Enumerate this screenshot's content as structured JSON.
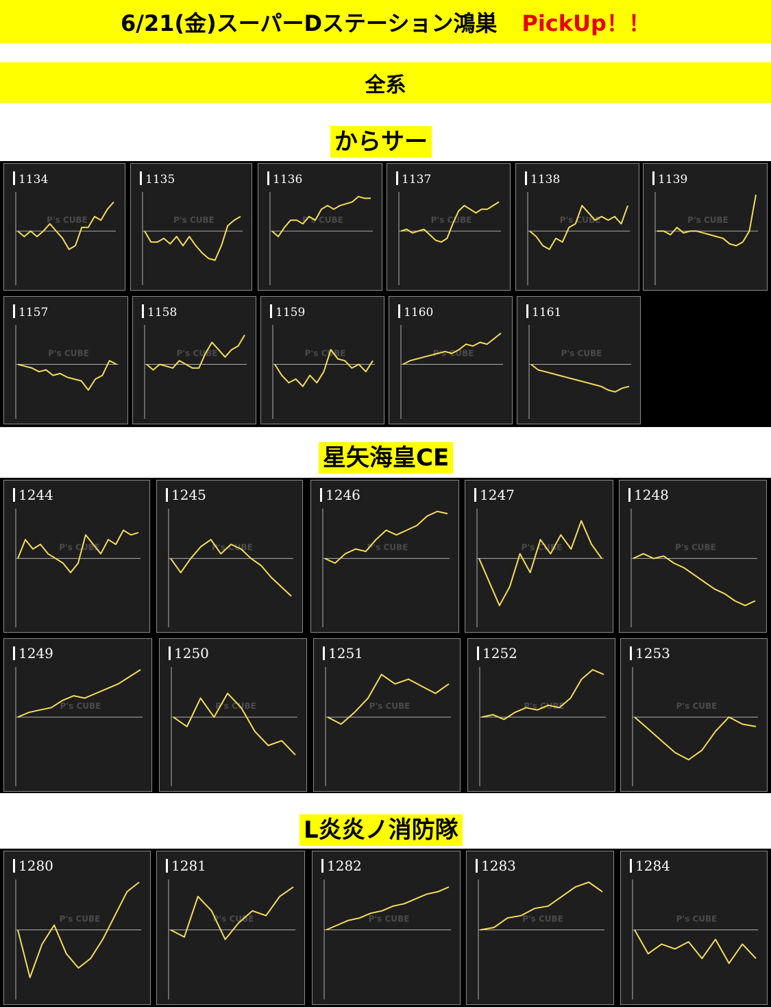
{
  "header": {
    "title": "6/21(金)スーパーDステーション鴻巣",
    "pickup": "PickUp！！",
    "subtitle": "全系"
  },
  "colors": {
    "banner": "#ffff00",
    "pickup": "#e60000",
    "panel_bg": "#1e1e1e",
    "line": "#f5dd5a",
    "baseline": "#b0b0b0"
  },
  "watermark": "P's CUBE",
  "sections": [
    {
      "name": "からサー"
    },
    {
      "name": "星矢海皇CE"
    },
    {
      "name": "L炎炎ノ消防隊"
    }
  ],
  "chart_data": [
    {
      "type": "line",
      "machine": "1134",
      "y": [
        0,
        -0.15,
        0,
        -0.15,
        0,
        0.2,
        0,
        -0.2,
        -0.5,
        -0.4,
        0.1,
        0.1,
        0.4,
        0.3,
        0.6,
        0.8
      ]
    },
    {
      "type": "line",
      "machine": "1135",
      "y": [
        0,
        -0.3,
        -0.3,
        -0.2,
        -0.35,
        -0.15,
        -0.4,
        -0.15,
        -0.4,
        -0.6,
        -0.75,
        -0.8,
        -0.4,
        0.15,
        0.3,
        0.4
      ]
    },
    {
      "type": "line",
      "machine": "1136",
      "y": [
        0,
        -0.15,
        0.1,
        0.3,
        0.3,
        0.2,
        0.4,
        0.3,
        0.6,
        0.7,
        0.6,
        0.7,
        0.75,
        0.8,
        0.95,
        0.9,
        0.9
      ]
    },
    {
      "type": "line",
      "machine": "1137",
      "y": [
        0,
        0.05,
        -0.05,
        0,
        0.05,
        -0.1,
        -0.25,
        -0.3,
        -0.2,
        0.2,
        0.55,
        0.7,
        0.6,
        0.5,
        0.6,
        0.6,
        0.7,
        0.8
      ]
    },
    {
      "type": "line",
      "machine": "1138",
      "y": [
        0,
        -0.15,
        -0.4,
        -0.5,
        -0.2,
        -0.3,
        0.1,
        0.2,
        0.7,
        0.5,
        0.3,
        0.4,
        0.3,
        0.4,
        0.2,
        0.7
      ]
    },
    {
      "type": "line",
      "machine": "1139",
      "y": [
        0,
        0,
        -0.1,
        0.1,
        -0.05,
        0,
        0,
        -0.05,
        -0.1,
        -0.15,
        -0.2,
        -0.35,
        -0.4,
        -0.3,
        0,
        1.0
      ]
    },
    {
      "type": "line",
      "machine": "1157",
      "y": [
        0,
        -0.05,
        -0.1,
        -0.2,
        -0.15,
        -0.3,
        -0.25,
        -0.35,
        -0.4,
        -0.45,
        -0.7,
        -0.4,
        -0.3,
        0.1,
        0
      ]
    },
    {
      "type": "line",
      "machine": "1158",
      "y": [
        0,
        -0.15,
        0,
        -0.05,
        -0.1,
        0.1,
        0,
        -0.1,
        -0.1,
        0.3,
        0.6,
        0.4,
        0.2,
        0.4,
        0.5,
        0.8
      ]
    },
    {
      "type": "line",
      "machine": "1159",
      "y": [
        0,
        -0.3,
        -0.5,
        -0.4,
        -0.6,
        -0.3,
        -0.5,
        -0.2,
        0.4,
        0.15,
        0.1,
        -0.1,
        0,
        -0.2,
        0.1
      ]
    },
    {
      "type": "line",
      "machine": "1160",
      "y": [
        0,
        0.1,
        0.15,
        0.2,
        0.25,
        0.3,
        0.35,
        0.3,
        0.4,
        0.55,
        0.5,
        0.6,
        0.55,
        0.7,
        0.85
      ]
    },
    {
      "type": "line",
      "machine": "1161",
      "y": [
        0,
        -0.15,
        -0.2,
        -0.25,
        -0.3,
        -0.35,
        -0.4,
        -0.45,
        -0.5,
        -0.55,
        -0.6,
        -0.7,
        -0.75,
        -0.65,
        -0.6
      ]
    },
    {
      "type": "line",
      "machine": "1244",
      "y": [
        0,
        0.4,
        0.2,
        0.3,
        0.1,
        0,
        -0.1,
        -0.3,
        -0.1,
        0.5,
        0.3,
        0.1,
        0.4,
        0.3,
        0.6,
        0.5,
        0.55
      ]
    },
    {
      "type": "line",
      "machine": "1245",
      "y": [
        0,
        -0.3,
        0,
        0.25,
        0.4,
        0.1,
        0.3,
        0.2,
        0,
        -0.15,
        -0.4,
        -0.6,
        -0.8
      ]
    },
    {
      "type": "line",
      "machine": "1246",
      "y": [
        0,
        -0.1,
        0.1,
        0.2,
        0.15,
        0.4,
        0.6,
        0.5,
        0.6,
        0.7,
        0.9,
        1.0,
        0.95
      ]
    },
    {
      "type": "line",
      "machine": "1247",
      "y": [
        0,
        -0.5,
        -1.0,
        -0.6,
        0.1,
        -0.3,
        0.4,
        0.1,
        0.5,
        0.2,
        0.8,
        0.3,
        0
      ]
    },
    {
      "type": "line",
      "machine": "1248",
      "y": [
        0,
        0.1,
        0,
        0.05,
        -0.1,
        -0.2,
        -0.35,
        -0.5,
        -0.65,
        -0.75,
        -0.9,
        -1.0,
        -0.9
      ]
    },
    {
      "type": "line",
      "machine": "1249",
      "y": [
        0,
        0.1,
        0.15,
        0.2,
        0.35,
        0.45,
        0.4,
        0.5,
        0.6,
        0.7,
        0.85,
        1.0
      ]
    },
    {
      "type": "line",
      "machine": "1250",
      "y": [
        0,
        -0.2,
        0.4,
        0,
        0.5,
        0.2,
        -0.3,
        -0.6,
        -0.5,
        -0.8
      ]
    },
    {
      "type": "line",
      "machine": "1251",
      "y": [
        0,
        -0.15,
        0.1,
        0.4,
        0.9,
        0.7,
        0.8,
        0.65,
        0.5,
        0.7
      ]
    },
    {
      "type": "line",
      "machine": "1252",
      "y": [
        0,
        0.05,
        -0.05,
        0.1,
        0.2,
        0.15,
        0.25,
        0.2,
        0.4,
        0.8,
        1.0,
        0.9
      ]
    },
    {
      "type": "line",
      "machine": "1253",
      "y": [
        0,
        -0.25,
        -0.5,
        -0.75,
        -0.9,
        -0.7,
        -0.3,
        0,
        -0.15,
        -0.2
      ]
    },
    {
      "type": "line",
      "machine": "1280",
      "y": [
        0,
        -1.0,
        -0.3,
        0.1,
        -0.5,
        -0.8,
        -0.6,
        -0.2,
        0.3,
        0.8,
        1.0
      ]
    },
    {
      "type": "line",
      "machine": "1281",
      "y": [
        0,
        -0.15,
        0.7,
        0.4,
        -0.2,
        0.15,
        0.4,
        0.3,
        0.7,
        0.9
      ]
    },
    {
      "type": "line",
      "machine": "1282",
      "y": [
        0,
        0.1,
        0.2,
        0.25,
        0.35,
        0.4,
        0.5,
        0.55,
        0.65,
        0.75,
        0.8,
        0.9
      ]
    },
    {
      "type": "line",
      "machine": "1283",
      "y": [
        0,
        0.05,
        0.25,
        0.3,
        0.45,
        0.5,
        0.7,
        0.9,
        1.0,
        0.8
      ]
    },
    {
      "type": "line",
      "machine": "1284",
      "y": [
        0,
        -0.5,
        -0.3,
        -0.4,
        -0.25,
        -0.6,
        -0.2,
        -0.7,
        -0.3,
        -0.6
      ]
    }
  ]
}
